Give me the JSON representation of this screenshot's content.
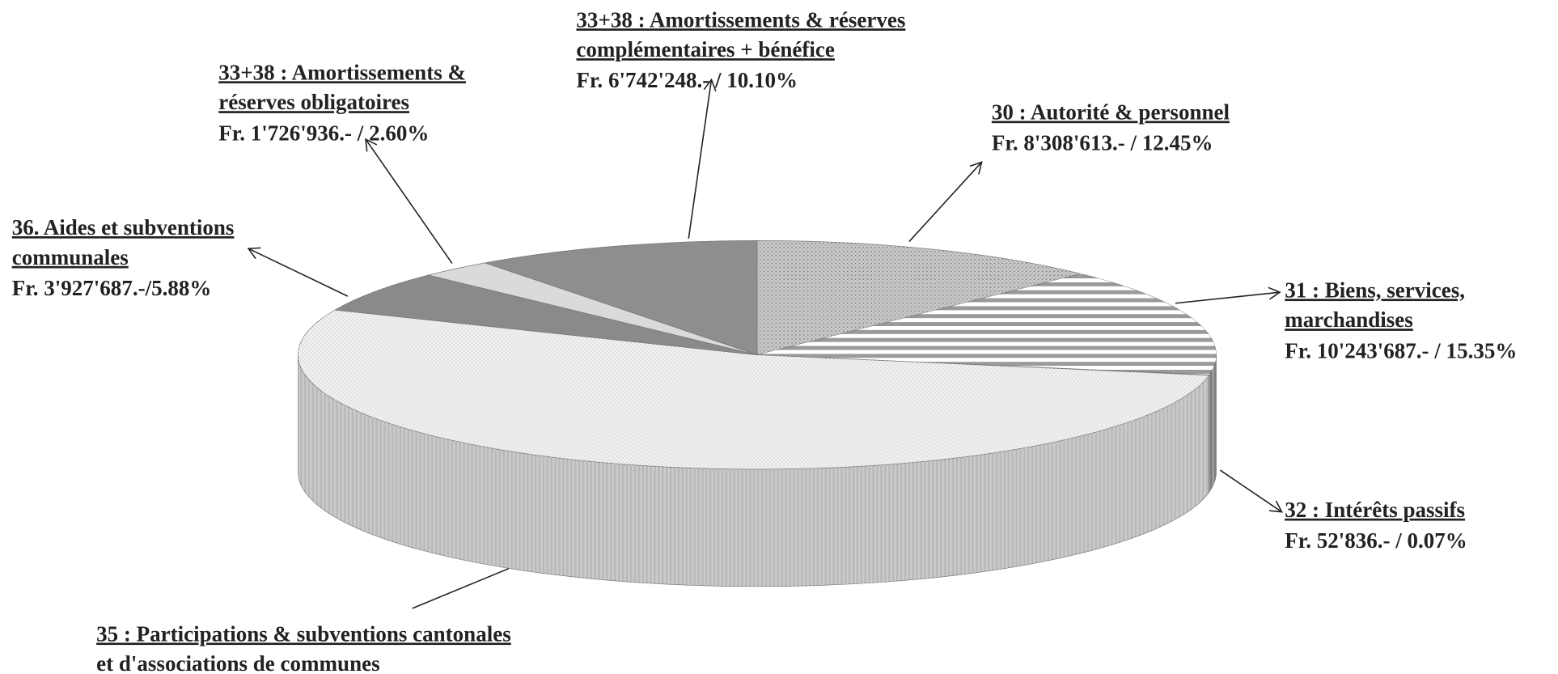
{
  "chart_data": {
    "type": "pie",
    "categories": [
      [
        "30 : Autorité & personnel"
      ],
      [
        "31 : Biens, services,",
        " marchandises"
      ],
      [
        "32 : Intérêts passifs"
      ],
      [
        "35 : Participations & subventions cantonales",
        "et d'associations de communes"
      ],
      [
        "36. Aides et subventions",
        "communales"
      ],
      [
        "33+38 : Amortissements &",
        "réserves obligatoires"
      ],
      [
        "33+38 : Amortissements & réserves",
        "complémentaires + bénéfice"
      ]
    ],
    "values": [
      12.45,
      15.35,
      0.07,
      53.55,
      5.88,
      2.6,
      10.1
    ],
    "value_labels": [
      "Fr. 8'308'613.- / 12.45%",
      "Fr. 10'243'687.- / 15.35%",
      "Fr. 52'836.- / 0.07%",
      null,
      "Fr. 3'927'687.-/5.88%",
      "Fr. 1'726'936.- / 2.60%",
      " Fr. 6'742'248.- / 10.10%"
    ],
    "colors": [
      "#c9c9c9",
      "#9a9a9a",
      "#6a6a6a",
      "#e2e2e2",
      "#8a8a8a",
      "#dadada",
      "#8e8e8e"
    ]
  }
}
